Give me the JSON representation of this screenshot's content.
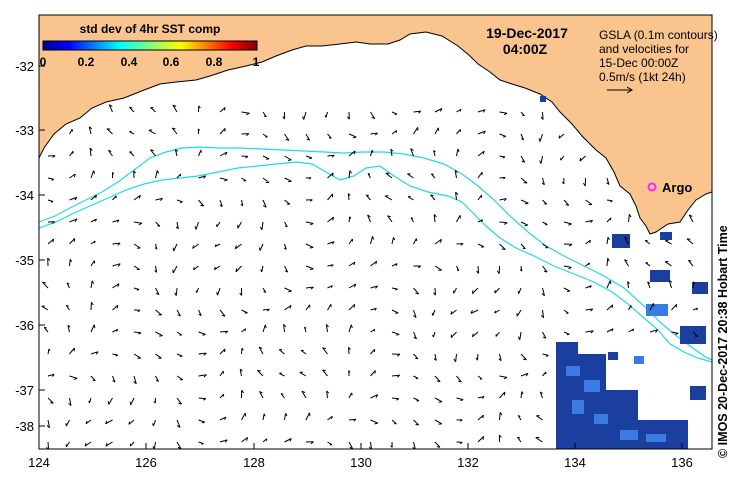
{
  "map": {
    "datetime_line1": "19-Dec-2017",
    "datetime_line2": "04:00Z",
    "x_ticks": [
      "124",
      "126",
      "128",
      "130",
      "132",
      "134",
      "136"
    ],
    "y_ticks": [
      "-32",
      "-33",
      "-34",
      "-35",
      "-36",
      "-37",
      "-38"
    ],
    "colorbar": {
      "title": "std dev of 4hr SST comp",
      "ticks": [
        "0",
        "0.2",
        "0.4",
        "0.6",
        "0.8",
        "1"
      ],
      "range": [
        0,
        1
      ]
    },
    "legend": {
      "line1": "GSLA (0.1m contours)",
      "line2": "and velocities for",
      "line3": "15-Dec 00:00Z",
      "line4": "0.5m/s (1kt 24h)"
    },
    "argo_label": "Argo",
    "credit": "© IMOS 20-Dec-2017 20:38 Hobart Time"
  },
  "colors": {
    "land": "#f9c48d",
    "contour": "#22d8e8",
    "argo": "#ff22ff",
    "cloud_dark": "#1b3f9e",
    "cloud_light": "#3b7ae0"
  }
}
